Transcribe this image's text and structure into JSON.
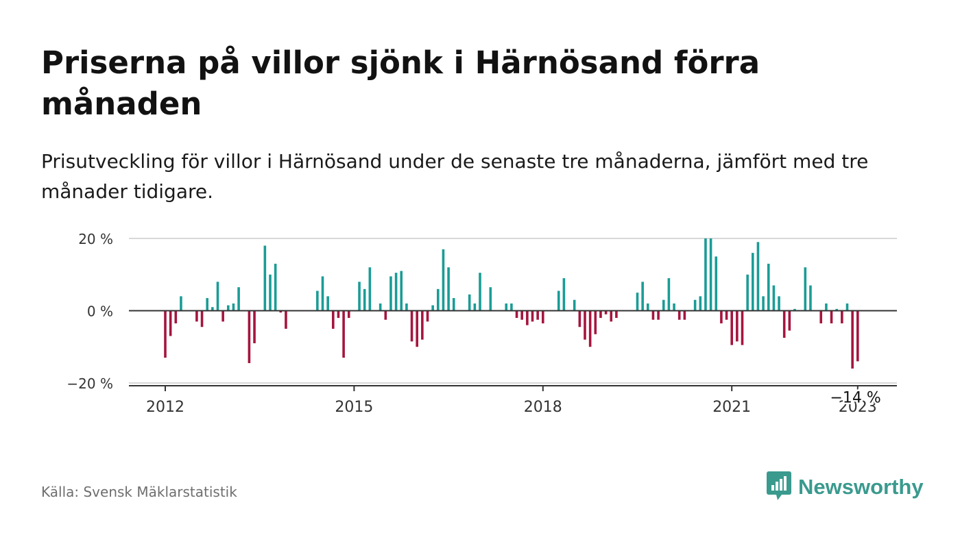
{
  "title": "Priserna på villor sjönk i Härnösand förra månaden",
  "subtitle": "Prisutveckling för villor i Härnösand under de senaste tre månaderna, jämfört med tre månader tidigare.",
  "source": "Källa: Svensk Mäklarstatistik",
  "brand": {
    "name": "Newsworthy",
    "icon": "newsworthy-logo-icon",
    "color": "#3a9a8e"
  },
  "colors": {
    "positive": "#1a9c96",
    "negative": "#a5153e",
    "zero_line": "#333333",
    "grid": "#d8d8d8"
  },
  "chart_data": {
    "type": "bar",
    "x_start": "2012-01",
    "x_end": "2023-01",
    "ylim": [
      -20,
      20
    ],
    "yticks": [
      20,
      0,
      -20
    ],
    "ytick_labels": [
      "20 %",
      "0 %",
      "−20 %"
    ],
    "xticks": [
      "2012",
      "2015",
      "2018",
      "2021",
      "2023"
    ],
    "grid": true,
    "annotation": {
      "text": "−14 %",
      "x": "2023-01",
      "y": -14
    },
    "points": [
      {
        "x": "2012-01",
        "y": -13
      },
      {
        "x": "2012-02",
        "y": -7
      },
      {
        "x": "2012-03",
        "y": -3.5
      },
      {
        "x": "2012-04",
        "y": 4
      },
      {
        "x": "2012-05",
        "y": 0
      },
      {
        "x": "2012-06",
        "y": 0
      },
      {
        "x": "2012-07",
        "y": -3
      },
      {
        "x": "2012-08",
        "y": -4.5
      },
      {
        "x": "2012-09",
        "y": 3.5
      },
      {
        "x": "2012-10",
        "y": 1
      },
      {
        "x": "2012-11",
        "y": 8
      },
      {
        "x": "2012-12",
        "y": -3
      },
      {
        "x": "2013-01",
        "y": 1.5
      },
      {
        "x": "2013-02",
        "y": 2
      },
      {
        "x": "2013-03",
        "y": 6.5
      },
      {
        "x": "2013-04",
        "y": 0
      },
      {
        "x": "2013-05",
        "y": -14.5
      },
      {
        "x": "2013-06",
        "y": -9
      },
      {
        "x": "2013-07",
        "y": 0
      },
      {
        "x": "2013-08",
        "y": 18
      },
      {
        "x": "2013-09",
        "y": 10
      },
      {
        "x": "2013-10",
        "y": 13
      },
      {
        "x": "2013-11",
        "y": -0.5
      },
      {
        "x": "2013-12",
        "y": -5
      },
      {
        "x": "2014-01",
        "y": 0
      },
      {
        "x": "2014-02",
        "y": 0
      },
      {
        "x": "2014-03",
        "y": 0
      },
      {
        "x": "2014-04",
        "y": 0
      },
      {
        "x": "2014-05",
        "y": 0
      },
      {
        "x": "2014-06",
        "y": 5.5
      },
      {
        "x": "2014-07",
        "y": 9.5
      },
      {
        "x": "2014-08",
        "y": 4
      },
      {
        "x": "2014-09",
        "y": -5
      },
      {
        "x": "2014-10",
        "y": -2
      },
      {
        "x": "2014-11",
        "y": -13
      },
      {
        "x": "2014-12",
        "y": -2
      },
      {
        "x": "2015-01",
        "y": 0
      },
      {
        "x": "2015-02",
        "y": 8
      },
      {
        "x": "2015-03",
        "y": 6
      },
      {
        "x": "2015-04",
        "y": 12
      },
      {
        "x": "2015-05",
        "y": 0
      },
      {
        "x": "2015-06",
        "y": 2
      },
      {
        "x": "2015-07",
        "y": -2.5
      },
      {
        "x": "2015-08",
        "y": 9.5
      },
      {
        "x": "2015-09",
        "y": 10.5
      },
      {
        "x": "2015-10",
        "y": 11
      },
      {
        "x": "2015-11",
        "y": 2
      },
      {
        "x": "2015-12",
        "y": -8.5
      },
      {
        "x": "2016-01",
        "y": -10
      },
      {
        "x": "2016-02",
        "y": -8
      },
      {
        "x": "2016-03",
        "y": -3
      },
      {
        "x": "2016-04",
        "y": 1.5
      },
      {
        "x": "2016-05",
        "y": 6
      },
      {
        "x": "2016-06",
        "y": 17
      },
      {
        "x": "2016-07",
        "y": 12
      },
      {
        "x": "2016-08",
        "y": 3.5
      },
      {
        "x": "2016-09",
        "y": 0
      },
      {
        "x": "2016-10",
        "y": 0
      },
      {
        "x": "2016-11",
        "y": 4.5
      },
      {
        "x": "2016-12",
        "y": 2
      },
      {
        "x": "2017-01",
        "y": 10.5
      },
      {
        "x": "2017-02",
        "y": 0
      },
      {
        "x": "2017-03",
        "y": 6.5
      },
      {
        "x": "2017-04",
        "y": 0
      },
      {
        "x": "2017-05",
        "y": 0
      },
      {
        "x": "2017-06",
        "y": 2
      },
      {
        "x": "2017-07",
        "y": 2
      },
      {
        "x": "2017-08",
        "y": -2
      },
      {
        "x": "2017-09",
        "y": -2.5
      },
      {
        "x": "2017-10",
        "y": -4
      },
      {
        "x": "2017-11",
        "y": -3
      },
      {
        "x": "2017-12",
        "y": -2.5
      },
      {
        "x": "2018-01",
        "y": -3.5
      },
      {
        "x": "2018-02",
        "y": 0
      },
      {
        "x": "2018-03",
        "y": 0
      },
      {
        "x": "2018-04",
        "y": 5.5
      },
      {
        "x": "2018-05",
        "y": 9
      },
      {
        "x": "2018-06",
        "y": 0
      },
      {
        "x": "2018-07",
        "y": 3
      },
      {
        "x": "2018-08",
        "y": -4.5
      },
      {
        "x": "2018-09",
        "y": -8
      },
      {
        "x": "2018-10",
        "y": -10
      },
      {
        "x": "2018-11",
        "y": -6.5
      },
      {
        "x": "2018-12",
        "y": -2
      },
      {
        "x": "2019-01",
        "y": -1
      },
      {
        "x": "2019-02",
        "y": -3
      },
      {
        "x": "2019-03",
        "y": -2
      },
      {
        "x": "2019-04",
        "y": 0
      },
      {
        "x": "2019-05",
        "y": 0
      },
      {
        "x": "2019-06",
        "y": 0
      },
      {
        "x": "2019-07",
        "y": 5
      },
      {
        "x": "2019-08",
        "y": 8
      },
      {
        "x": "2019-09",
        "y": 2
      },
      {
        "x": "2019-10",
        "y": -2.5
      },
      {
        "x": "2019-11",
        "y": -2.5
      },
      {
        "x": "2019-12",
        "y": 3
      },
      {
        "x": "2020-01",
        "y": 9
      },
      {
        "x": "2020-02",
        "y": 2
      },
      {
        "x": "2020-03",
        "y": -2.5
      },
      {
        "x": "2020-04",
        "y": -2.5
      },
      {
        "x": "2020-05",
        "y": 0
      },
      {
        "x": "2020-06",
        "y": 3
      },
      {
        "x": "2020-07",
        "y": 4
      },
      {
        "x": "2020-08",
        "y": 20
      },
      {
        "x": "2020-09",
        "y": 20
      },
      {
        "x": "2020-10",
        "y": 15
      },
      {
        "x": "2020-11",
        "y": -3.5
      },
      {
        "x": "2020-12",
        "y": -2.5
      },
      {
        "x": "2021-01",
        "y": -9.5
      },
      {
        "x": "2021-02",
        "y": -8.5
      },
      {
        "x": "2021-03",
        "y": -9.5
      },
      {
        "x": "2021-04",
        "y": 10
      },
      {
        "x": "2021-05",
        "y": 16
      },
      {
        "x": "2021-06",
        "y": 19
      },
      {
        "x": "2021-07",
        "y": 4
      },
      {
        "x": "2021-08",
        "y": 13
      },
      {
        "x": "2021-09",
        "y": 7
      },
      {
        "x": "2021-10",
        "y": 4
      },
      {
        "x": "2021-11",
        "y": -7.5
      },
      {
        "x": "2021-12",
        "y": -5.5
      },
      {
        "x": "2022-01",
        "y": 0.5
      },
      {
        "x": "2022-02",
        "y": 0
      },
      {
        "x": "2022-03",
        "y": 12
      },
      {
        "x": "2022-04",
        "y": 7
      },
      {
        "x": "2022-05",
        "y": 0
      },
      {
        "x": "2022-06",
        "y": -3.5
      },
      {
        "x": "2022-07",
        "y": 2
      },
      {
        "x": "2022-08",
        "y": -3.5
      },
      {
        "x": "2022-09",
        "y": 0.5
      },
      {
        "x": "2022-10",
        "y": -3.5
      },
      {
        "x": "2022-11",
        "y": 2
      },
      {
        "x": "2022-12",
        "y": -16
      },
      {
        "x": "2023-01",
        "y": -14
      }
    ]
  }
}
